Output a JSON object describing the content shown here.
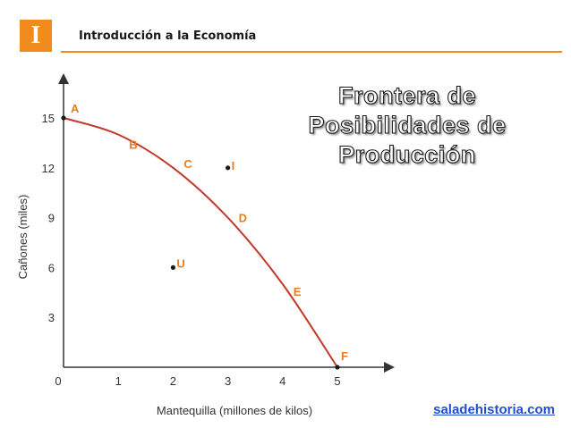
{
  "header": {
    "badge": "I",
    "title": "Introducción a la Economía"
  },
  "title_lines": [
    "Frontera de",
    "Posibilidades de",
    "Producción"
  ],
  "footer": {
    "link": "saladehistoria.com"
  },
  "colors": {
    "accent": "#f08c1e",
    "curve": "#c0392b",
    "point_label": "#e67e22",
    "link": "#1f4fcf"
  },
  "chart_data": {
    "type": "line",
    "xlabel": "Mantequilla (millones de kilos)",
    "ylabel": "Cañones (miles)",
    "xlim": [
      0,
      6
    ],
    "ylim": [
      0,
      15
    ],
    "x_ticks": [
      "1",
      "2",
      "3",
      "4",
      "5"
    ],
    "y_ticks": [
      "3",
      "6",
      "9",
      "12",
      "15"
    ],
    "origin_label": "0",
    "frontier": {
      "x": [
        0,
        1,
        2,
        3,
        4,
        5
      ],
      "y": [
        15,
        14,
        12,
        9,
        5,
        0
      ]
    },
    "curve_labels": [
      {
        "label": "A",
        "x": 0,
        "y": 15
      },
      {
        "label": "B",
        "x": 1,
        "y": 14
      },
      {
        "label": "C",
        "x": 2,
        "y": 12
      },
      {
        "label": "D",
        "x": 3,
        "y": 9
      },
      {
        "label": "E",
        "x": 4,
        "y": 5
      },
      {
        "label": "F",
        "x": 5,
        "y": 0
      }
    ],
    "points": [
      {
        "label": "A",
        "x": 0,
        "y": 15
      },
      {
        "label": "F",
        "x": 5,
        "y": 0
      },
      {
        "label": "I",
        "x": 3,
        "y": 12
      },
      {
        "label": "U",
        "x": 2,
        "y": 6
      }
    ]
  }
}
